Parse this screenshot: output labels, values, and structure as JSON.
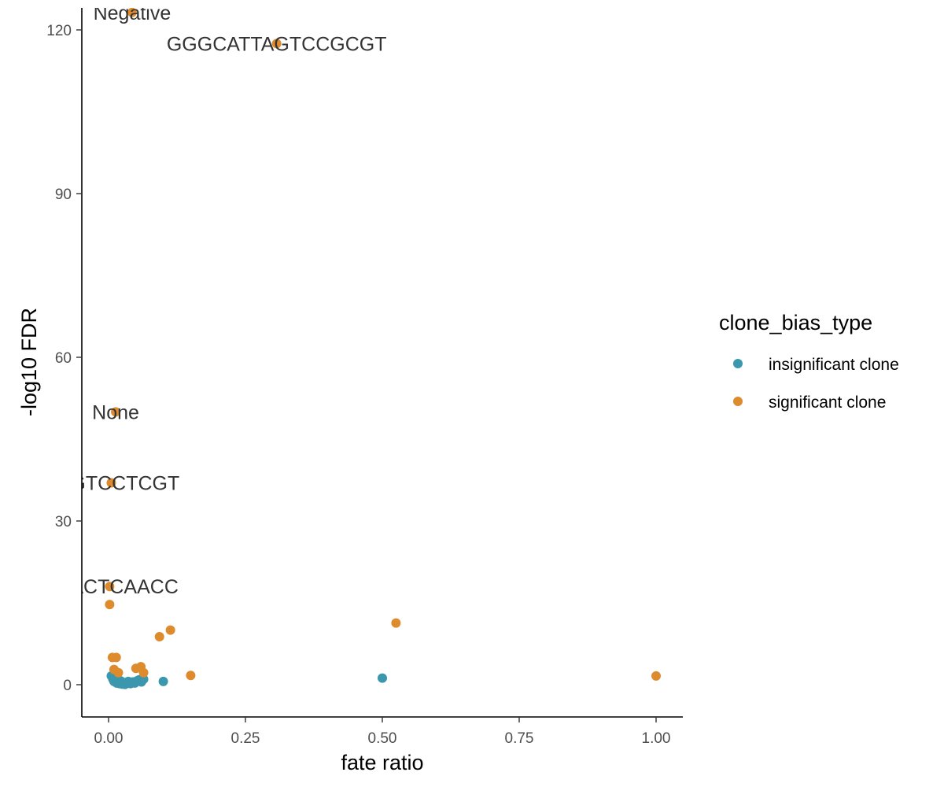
{
  "chart_data": {
    "type": "scatter",
    "title": "",
    "xlabel": "fate ratio",
    "ylabel": "-log10 FDR",
    "xlim": [
      -0.05,
      1.05
    ],
    "ylim": [
      -5.5,
      123.5
    ],
    "x_ticks": [
      0,
      0.25,
      0.5,
      0.75,
      1
    ],
    "x_tick_labels": [
      "0.00",
      "0.25",
      "0.50",
      "0.75",
      "1.00"
    ],
    "y_ticks": [
      0,
      30,
      60,
      90,
      120
    ],
    "y_tick_labels": [
      "0",
      "30",
      "60",
      "90",
      "120"
    ],
    "grid": false,
    "legend": {
      "title": "clone_bias_type",
      "position": "right",
      "entries": [
        {
          "label": "insignificant clone",
          "color": "#3b97ad"
        },
        {
          "label": "significant clone",
          "color": "#de8b2e"
        }
      ]
    },
    "series": [
      {
        "name": "insignificant clone",
        "color": "#3b97ad",
        "points": [
          {
            "x": 0.005,
            "y": 1.6
          },
          {
            "x": 0.008,
            "y": 1.0
          },
          {
            "x": 0.01,
            "y": 0.6
          },
          {
            "x": 0.012,
            "y": 1.4
          },
          {
            "x": 0.015,
            "y": 0.3
          },
          {
            "x": 0.018,
            "y": 0.9
          },
          {
            "x": 0.02,
            "y": 0.2
          },
          {
            "x": 0.022,
            "y": 0.7
          },
          {
            "x": 0.025,
            "y": 0.1
          },
          {
            "x": 0.028,
            "y": 0.4
          },
          {
            "x": 0.03,
            "y": 0.05
          },
          {
            "x": 0.033,
            "y": 0.3
          },
          {
            "x": 0.036,
            "y": 0.6
          },
          {
            "x": 0.04,
            "y": 0.2
          },
          {
            "x": 0.044,
            "y": 0.5
          },
          {
            "x": 0.048,
            "y": 0.3
          },
          {
            "x": 0.052,
            "y": 0.7
          },
          {
            "x": 0.056,
            "y": 0.9
          },
          {
            "x": 0.06,
            "y": 0.5
          },
          {
            "x": 0.064,
            "y": 1.0
          },
          {
            "x": 0.1,
            "y": 0.6
          },
          {
            "x": 0.5,
            "y": 1.2
          }
        ]
      },
      {
        "name": "significant clone",
        "color": "#de8b2e",
        "points": [
          {
            "x": 0.043,
            "y": 123.2
          },
          {
            "x": 0.307,
            "y": 117.5
          },
          {
            "x": 0.013,
            "y": 50.0
          },
          {
            "x": 0.005,
            "y": 37.0
          },
          {
            "x": 0.002,
            "y": 18.0
          },
          {
            "x": 0.002,
            "y": 14.7
          },
          {
            "x": 0.525,
            "y": 11.3
          },
          {
            "x": 0.113,
            "y": 10.0
          },
          {
            "x": 0.093,
            "y": 8.8
          },
          {
            "x": 0.007,
            "y": 5.0
          },
          {
            "x": 0.014,
            "y": 5.0
          },
          {
            "x": 0.01,
            "y": 2.8
          },
          {
            "x": 0.018,
            "y": 2.2
          },
          {
            "x": 0.05,
            "y": 3.0
          },
          {
            "x": 0.059,
            "y": 3.3
          },
          {
            "x": 0.064,
            "y": 2.2
          },
          {
            "x": 0.15,
            "y": 1.7
          },
          {
            "x": 1.0,
            "y": 1.6
          }
        ]
      }
    ],
    "annotations": [
      {
        "text": "Negative",
        "x": 0.043,
        "y": 123.2
      },
      {
        "text": "GGGCATTAGTCCGCGT",
        "x": 0.307,
        "y": 117.5
      },
      {
        "text": "None",
        "x": 0.013,
        "y": 50.0
      },
      {
        "text": "TGGTCCTCGT",
        "x": 0.005,
        "y": 37.0
      },
      {
        "text": "CGACTCAACC",
        "x": 0.002,
        "y": 18.0
      }
    ]
  }
}
